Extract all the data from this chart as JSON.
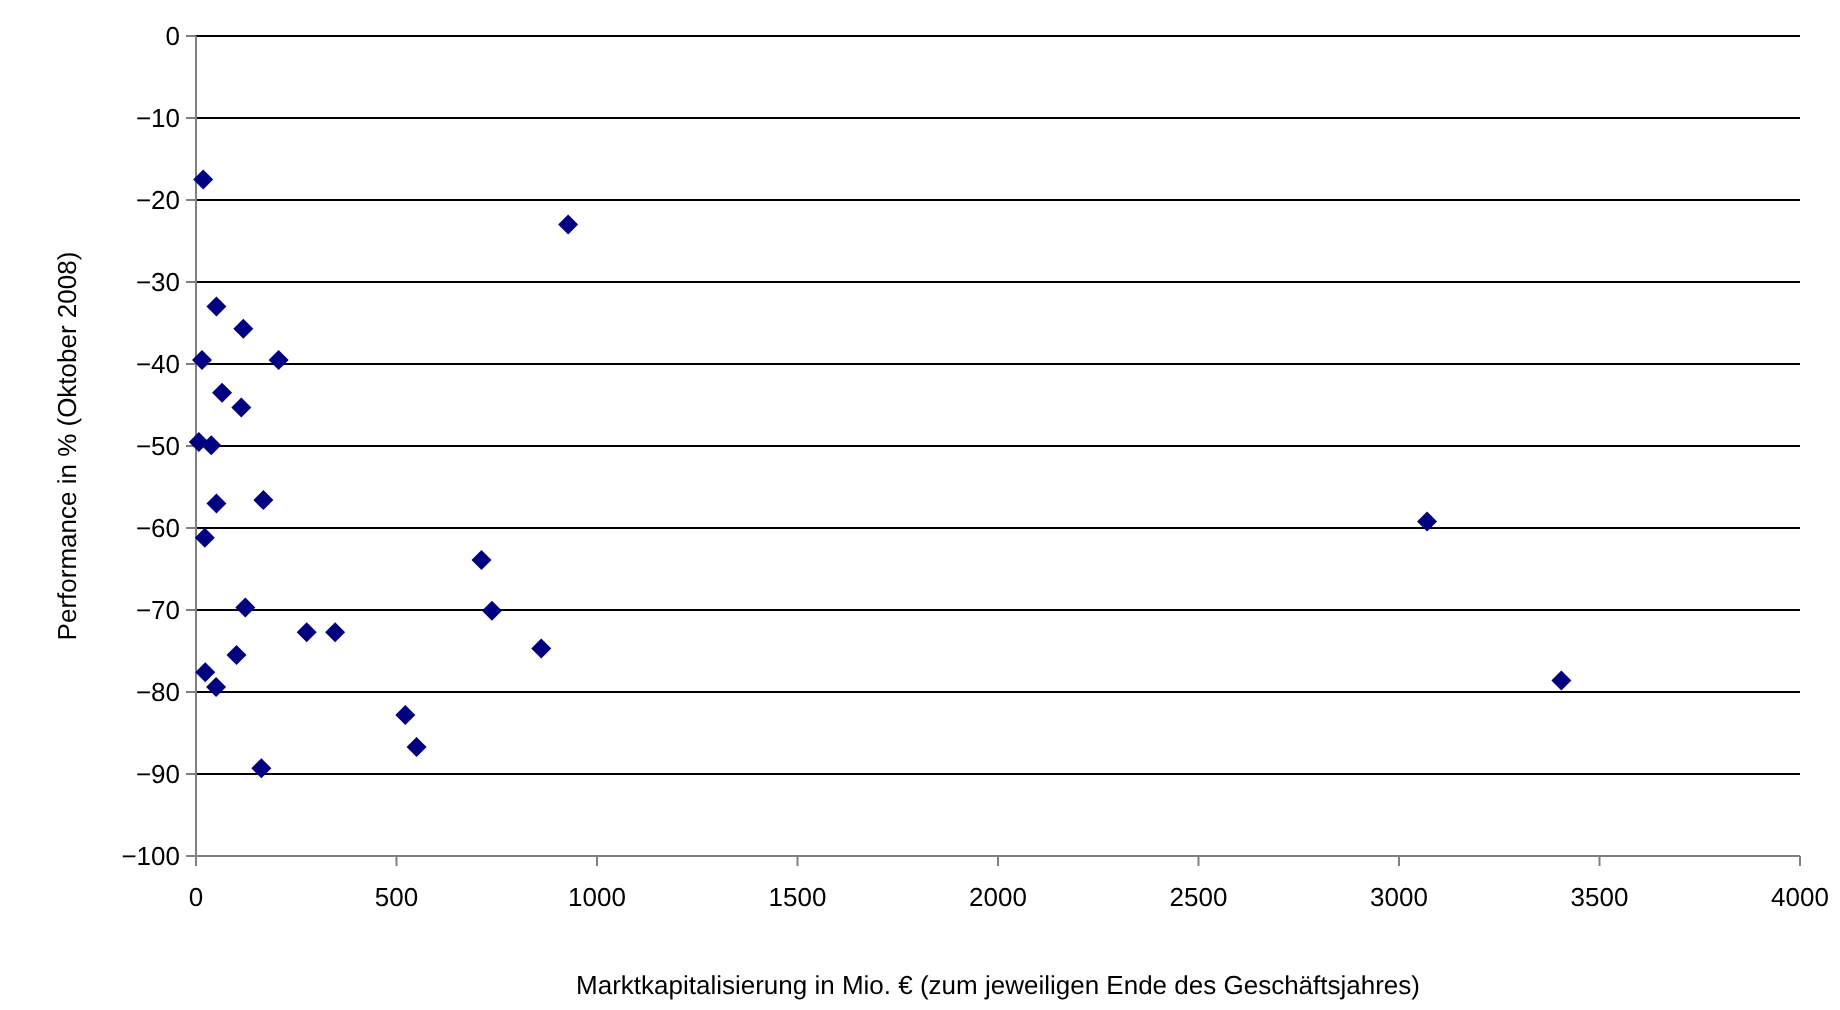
{
  "chart_data": {
    "type": "scatter",
    "xlabel": "Marktkapitalisierung in Mio. € (zum jeweiligen Ende des Geschäftsjahres)",
    "ylabel": "Performance in % (Oktober 2008)",
    "x": [
      18,
      928,
      51,
      118,
      15,
      206,
      65,
      113,
      7,
      38,
      51,
      168,
      22,
      712,
      123,
      738,
      276,
      347,
      861,
      101,
      23,
      50,
      522,
      550,
      163,
      3070,
      3405
    ],
    "series": [
      {
        "color": "#000080",
        "values": [
          -17.5,
          -23,
          -33,
          -35.7,
          -39.5,
          -39.5,
          -43.5,
          -45.3,
          -49.5,
          -49.9,
          -57,
          -56.6,
          -61.2,
          -63.9,
          -69.7,
          -70.1,
          -72.7,
          -72.7,
          -74.7,
          -75.5,
          -77.6,
          -79.4,
          -82.8,
          -86.7,
          -89.3,
          -59.2,
          -78.6
        ]
      }
    ],
    "marker": "diamond",
    "grid": "y",
    "xlim": [
      0,
      4000
    ],
    "xticks": [
      0,
      500,
      1000,
      1500,
      2000,
      2500,
      3000,
      3500,
      4000
    ],
    "ylim": [
      -100,
      0
    ],
    "yticks": [
      -100,
      -90,
      -80,
      -70,
      -60,
      -50,
      -40,
      -30,
      -20,
      -10,
      0
    ]
  }
}
